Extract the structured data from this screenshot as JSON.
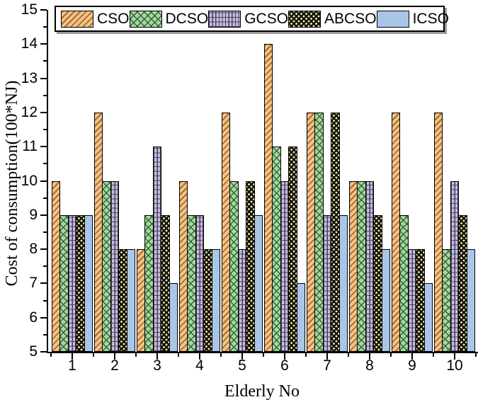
{
  "chart_data": {
    "type": "bar",
    "title": "",
    "xlabel": "Elderly No",
    "ylabel": "Cost of consumption(100*NJ)",
    "categories": [
      "1",
      "2",
      "3",
      "4",
      "5",
      "6",
      "7",
      "8",
      "9",
      "10"
    ],
    "series": [
      {
        "name": "CSO",
        "pattern": "diagonal-hatch",
        "fill": "#F5C289",
        "pattern_color": "#A26F2F",
        "values": [
          10,
          12,
          8,
          10,
          12,
          14,
          12,
          10,
          12,
          12
        ]
      },
      {
        "name": "DCSO",
        "pattern": "crosshatch",
        "fill": "#A6D6A1",
        "pattern_color": "#336633",
        "values": [
          9,
          10,
          9,
          9,
          10,
          11,
          12,
          10,
          9,
          8
        ]
      },
      {
        "name": "GCSO",
        "pattern": "grid",
        "fill": "#C9BCDD",
        "pattern_color": "#453F5C",
        "values": [
          9,
          10,
          11,
          9,
          8,
          10,
          9,
          10,
          8,
          10
        ]
      },
      {
        "name": "ABCSO",
        "pattern": "dots",
        "fill": "#161310",
        "pattern_color": "#F1EDA2",
        "values": [
          9,
          8,
          9,
          8,
          10,
          11,
          12,
          9,
          8,
          9
        ]
      },
      {
        "name": "ICSO",
        "pattern": "solid",
        "fill": "#A9C6E8",
        "pattern_color": "#A9C6E8",
        "values": [
          9,
          8,
          7,
          8,
          9,
          7,
          9,
          8,
          7,
          8
        ]
      }
    ],
    "ylim": [
      5,
      15
    ],
    "y_major_ticks": [
      5,
      6,
      7,
      8,
      9,
      10,
      11,
      12,
      13,
      14,
      15
    ],
    "y_minor_step": 0.5,
    "x_minor_at_group_boundaries": true,
    "legend_position": "top",
    "grid": false,
    "colors": {
      "axis": "#000000",
      "background": "#ffffff",
      "legend_shadow": "#9a9a9a"
    }
  }
}
